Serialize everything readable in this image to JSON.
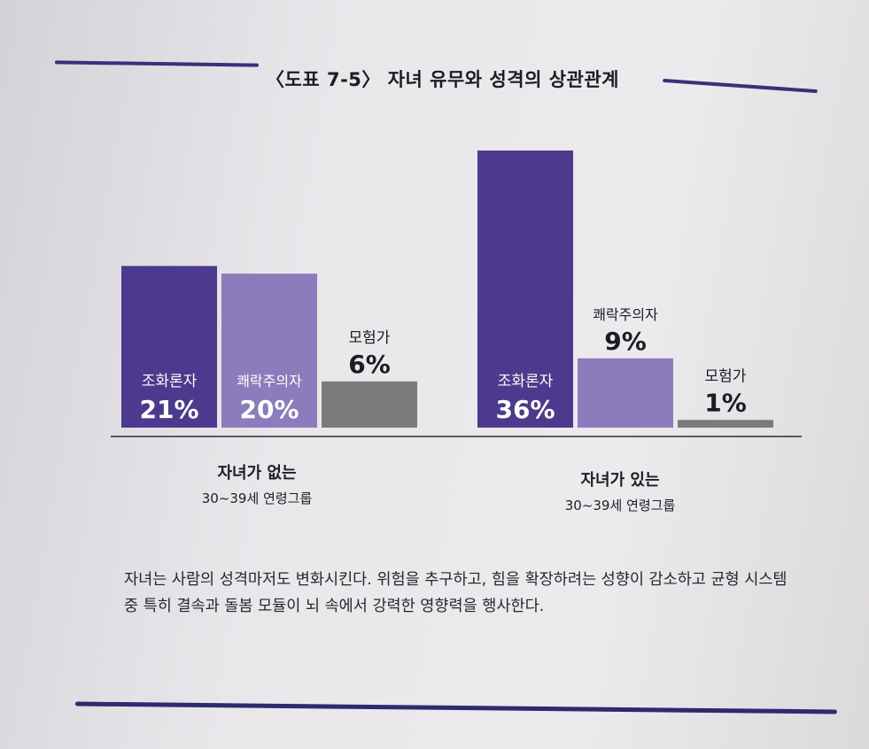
{
  "title": "〈도표 7-5〉 자녀 유무와 성격의 상관관계",
  "chart_data": {
    "type": "bar",
    "title": "〈도표 7-5〉 자녀 유무와 성격의 상관관계",
    "ylim": [
      0,
      40
    ],
    "grid": false,
    "groups": [
      {
        "label_line1": "자녀가 없는",
        "label_line2": "30~39세 연령그룹",
        "bars": [
          {
            "name": "조화론자",
            "value": 21,
            "value_label": "21%",
            "color": "#4b3a8e"
          },
          {
            "name": "쾌락주의자",
            "value": 20,
            "value_label": "20%",
            "color": "#8a7cbd"
          },
          {
            "name": "모험가",
            "value": 6,
            "value_label": "6%",
            "color": "#7b7b7e"
          }
        ]
      },
      {
        "label_line1": "자녀가 있는",
        "label_line2": "30~39세 연령그룹",
        "bars": [
          {
            "name": "조화론자",
            "value": 36,
            "value_label": "36%",
            "color": "#4b3a8e"
          },
          {
            "name": "쾌락주의자",
            "value": 9,
            "value_label": "9%",
            "color": "#8a7cbd"
          },
          {
            "name": "모험가",
            "value": 1,
            "value_label": "1%",
            "color": "#7b7b7e"
          }
        ]
      }
    ]
  },
  "caption": "자녀는 사람의 성격마저도 변화시킨다. 위험을 추구하고, 힘을 확장하려는 성향이 감소하고 균형 시스템 중 특히 결속과 돌봄 모듈이 뇌 속에서 강력한 영향력을 행사한다.",
  "colors": {
    "accent": "#3a2f78"
  }
}
